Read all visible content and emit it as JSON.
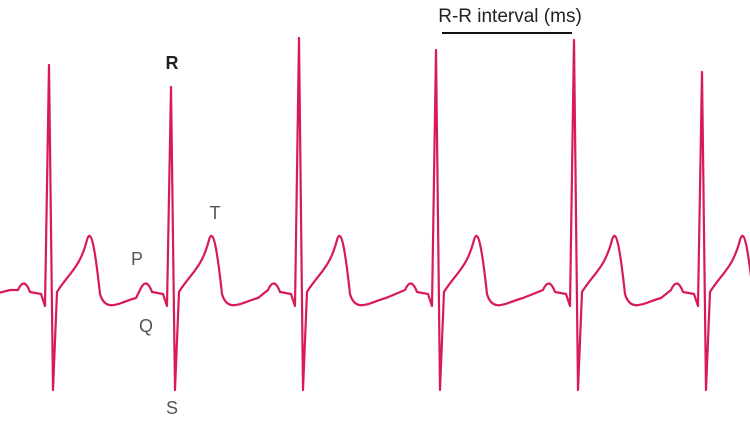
{
  "interval": {
    "label": "R-R interval (ms)"
  },
  "waves": {
    "r": "R",
    "t": "T",
    "p": "P",
    "q": "Q",
    "s": "S"
  }
}
